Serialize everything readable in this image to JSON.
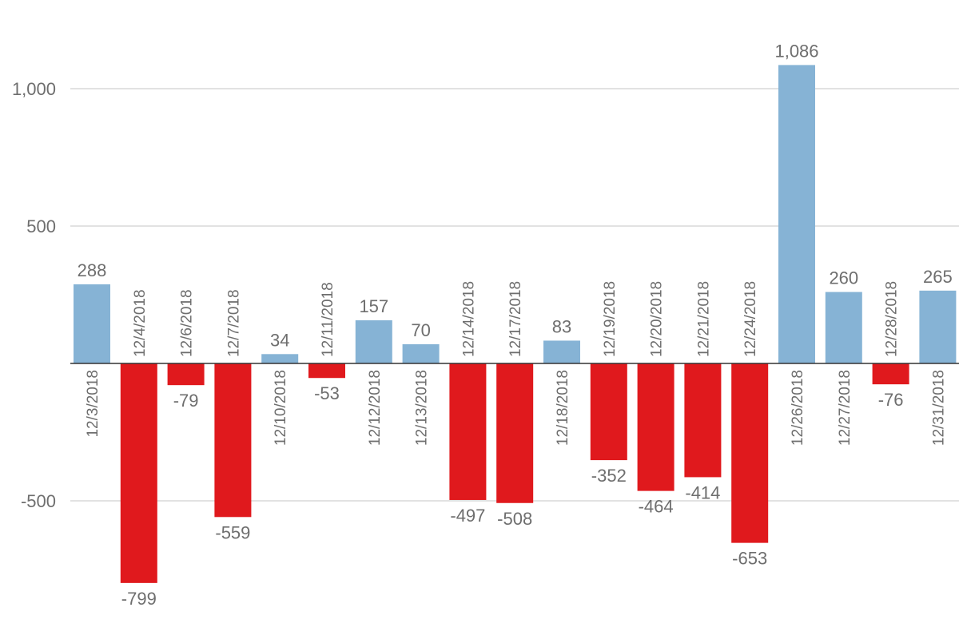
{
  "chart_data": {
    "type": "bar",
    "title": "",
    "xlabel": "",
    "ylabel": "",
    "ylim": [
      -850,
      1150
    ],
    "yticks": [
      -500,
      500,
      1000
    ],
    "ytick_labels": [
      "-500",
      "500",
      "1,000"
    ],
    "grid": true,
    "categories": [
      "12/3/2018",
      "12/4/2018",
      "12/6/2018",
      "12/7/2018",
      "12/10/2018",
      "12/11/2018",
      "12/12/2018",
      "12/13/2018",
      "12/14/2018",
      "12/17/2018",
      "12/18/2018",
      "12/19/2018",
      "12/20/2018",
      "12/21/2018",
      "12/24/2018",
      "12/26/2018",
      "12/27/2018",
      "12/28/2018",
      "12/31/2018"
    ],
    "values": [
      288,
      -799,
      -79,
      -559,
      34,
      -53,
      157,
      70,
      -497,
      -508,
      83,
      -352,
      -464,
      -414,
      -653,
      1086,
      260,
      -76,
      265
    ],
    "value_labels": [
      "288",
      "-799",
      "-79",
      "-559",
      "34",
      "-53",
      "157",
      "70",
      "-497",
      "-508",
      "83",
      "-352",
      "-464",
      "-414",
      "-653",
      "1,086",
      "260",
      "-76",
      "265"
    ],
    "colors": {
      "positive": "#86b3d5",
      "negative": "#e0191d",
      "grid": "#d9d9d9",
      "zero_line": "#333333",
      "text": "#6e6e6e"
    }
  }
}
